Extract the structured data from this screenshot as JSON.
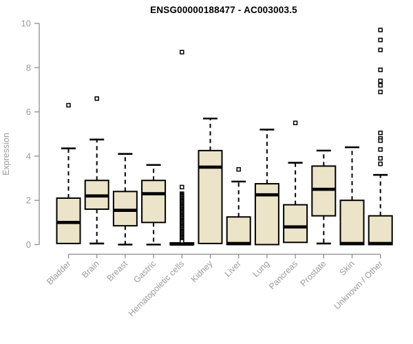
{
  "header": {
    "title": "ENSG00000188477 - AC003003.5"
  },
  "chart_data": {
    "type": "boxplot",
    "title": "ENSG00000188477 - AC003003.5",
    "xlabel": "",
    "ylabel": "Expression",
    "ylim": [
      0,
      10
    ],
    "yticks": [
      0,
      2,
      4,
      6,
      8,
      10
    ],
    "grid": false,
    "legend": "none",
    "categories": [
      "Bladder",
      "Brain",
      "Breast",
      "Gastric",
      "Hematopoietic cells",
      "Kidney",
      "Liver",
      "Lung",
      "Pancreas",
      "Prostate",
      "Skin",
      "Unknown / Other"
    ],
    "series": [
      {
        "category": "Bladder",
        "low": 0.05,
        "q1": 0.05,
        "median": 1.0,
        "q3": 2.1,
        "high": 4.35,
        "outliers": [
          6.3
        ]
      },
      {
        "category": "Brain",
        "low": 0.05,
        "q1": 1.6,
        "median": 2.2,
        "q3": 2.9,
        "high": 4.75,
        "outliers": [
          6.6
        ]
      },
      {
        "category": "Breast",
        "low": 0.0,
        "q1": 0.85,
        "median": 1.55,
        "q3": 2.4,
        "high": 4.1,
        "outliers": []
      },
      {
        "category": "Gastric",
        "low": 0.0,
        "q1": 1.0,
        "median": 2.3,
        "q3": 2.9,
        "high": 3.6,
        "outliers": []
      },
      {
        "category": "Hematopoietic cells",
        "low": 0.0,
        "q1": 0.0,
        "median": 0.02,
        "q3": 0.08,
        "high": 0.08,
        "outliers": [
          8.7,
          2.6,
          2.3,
          2.25,
          2.2,
          2.15,
          2.1,
          2.05,
          2.0,
          1.95,
          1.9,
          1.85,
          1.8,
          1.75,
          1.7,
          1.65,
          1.6,
          1.55,
          1.5,
          1.45,
          1.4,
          1.35,
          1.3,
          1.25,
          1.2,
          1.15,
          1.1,
          1.05,
          1.0,
          0.95,
          0.9,
          0.85,
          0.8,
          0.75,
          0.7,
          0.65,
          0.6,
          0.55,
          0.5,
          0.45,
          0.4,
          0.35,
          0.3,
          0.25,
          0.2,
          0.15
        ]
      },
      {
        "category": "Kidney",
        "low": 0.05,
        "q1": 0.05,
        "median": 3.5,
        "q3": 4.25,
        "high": 5.7,
        "outliers": []
      },
      {
        "category": "Liver",
        "low": 0.0,
        "q1": 0.0,
        "median": 0.05,
        "q3": 1.25,
        "high": 2.85,
        "outliers": [
          3.4
        ]
      },
      {
        "category": "Lung",
        "low": 0.0,
        "q1": 0.0,
        "median": 2.25,
        "q3": 2.75,
        "high": 5.2,
        "outliers": []
      },
      {
        "category": "Pancreas",
        "low": 0.1,
        "q1": 0.1,
        "median": 0.8,
        "q3": 1.8,
        "high": 3.7,
        "outliers": [
          5.5
        ]
      },
      {
        "category": "Prostate",
        "low": 0.05,
        "q1": 1.3,
        "median": 2.5,
        "q3": 3.55,
        "high": 4.25,
        "outliers": []
      },
      {
        "category": "Skin",
        "low": 0.0,
        "q1": 0.0,
        "median": 0.05,
        "q3": 2.0,
        "high": 4.4,
        "outliers": []
      },
      {
        "category": "Unknown / Other",
        "low": 0.0,
        "q1": 0.0,
        "median": 0.05,
        "q3": 1.3,
        "high": 3.15,
        "outliers": [
          9.7,
          9.25,
          8.8,
          7.9,
          7.4,
          7.2,
          6.9,
          5.05,
          4.8,
          4.7,
          4.3,
          3.9,
          3.65
        ]
      }
    ],
    "colors": {
      "box_fill": "#EBE4C8",
      "box_border": "#000000",
      "median": "#000000",
      "whisker": "#000000",
      "outlier_stroke": "#000000",
      "outlier_fill": "#ffffff",
      "axis": "#8C8C8C",
      "tick_label": "#9A9A9A",
      "title": "#000000"
    }
  }
}
